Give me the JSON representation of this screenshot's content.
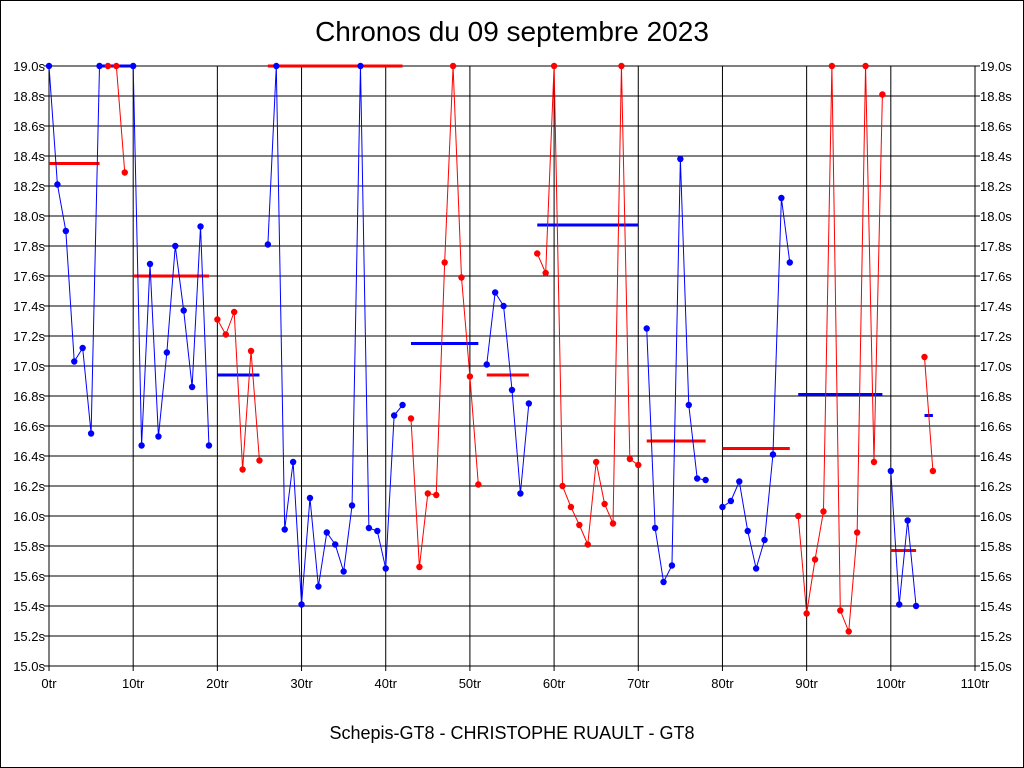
{
  "chart_data": {
    "type": "line",
    "title": "Chronos du 09 septembre 2023",
    "xlabel": "Schepis-GT8 - CHRISTOPHE RUAULT - GT8",
    "ylabel": "",
    "xlim": [
      0,
      110
    ],
    "ylim": [
      15.0,
      19.0
    ],
    "grid": true,
    "x_ticks": [
      "0tr",
      "10tr",
      "20tr",
      "30tr",
      "40tr",
      "50tr",
      "60tr",
      "70tr",
      "80tr",
      "90tr",
      "100tr",
      "110tr"
    ],
    "y_ticks": [
      "15.0s",
      "15.2s",
      "15.4s",
      "15.6s",
      "15.8s",
      "16.0s",
      "16.2s",
      "16.4s",
      "16.6s",
      "16.8s",
      "17.0s",
      "17.2s",
      "17.4s",
      "17.6s",
      "17.8s",
      "18.0s",
      "18.2s",
      "18.4s",
      "18.6s",
      "18.8s",
      "19.0s"
    ],
    "colors": {
      "blue": "#0000ff",
      "red": "#ff0000"
    },
    "series": [
      {
        "color": "blue",
        "points": [
          [
            0,
            19.0
          ],
          [
            1,
            18.21
          ],
          [
            2,
            17.9
          ],
          [
            3,
            17.03
          ],
          [
            4,
            17.12
          ],
          [
            5,
            16.55
          ],
          [
            6,
            19.0
          ]
        ]
      },
      {
        "color": "red",
        "points": [
          [
            7,
            19.0
          ],
          [
            8,
            19.0
          ],
          [
            9,
            18.29
          ]
        ]
      },
      {
        "color": "blue",
        "points": [
          [
            10,
            19.0
          ],
          [
            11,
            16.47
          ],
          [
            12,
            17.68
          ],
          [
            13,
            16.53
          ],
          [
            14,
            17.09
          ],
          [
            15,
            17.8
          ],
          [
            16,
            17.37
          ],
          [
            17,
            16.86
          ],
          [
            18,
            17.93
          ],
          [
            19,
            16.47
          ]
        ]
      },
      {
        "color": "red",
        "points": [
          [
            20,
            17.31
          ],
          [
            21,
            17.21
          ],
          [
            22,
            17.36
          ],
          [
            23,
            16.31
          ],
          [
            24,
            17.1
          ],
          [
            25,
            16.37
          ]
        ]
      },
      {
        "color": "blue",
        "points": [
          [
            26,
            17.81
          ],
          [
            27,
            19.0
          ],
          [
            28,
            15.91
          ],
          [
            29,
            16.36
          ],
          [
            30,
            15.41
          ],
          [
            31,
            16.12
          ],
          [
            32,
            15.53
          ],
          [
            33,
            15.89
          ],
          [
            34,
            15.81
          ],
          [
            35,
            15.63
          ],
          [
            36,
            16.07
          ],
          [
            37,
            19.0
          ],
          [
            38,
            15.92
          ],
          [
            39,
            15.9
          ],
          [
            40,
            15.65
          ],
          [
            41,
            16.67
          ],
          [
            42,
            16.74
          ]
        ]
      },
      {
        "color": "red",
        "points": [
          [
            43,
            16.65
          ],
          [
            44,
            15.66
          ],
          [
            45,
            16.15
          ],
          [
            46,
            16.14
          ],
          [
            47,
            17.69
          ],
          [
            48,
            19.0
          ],
          [
            49,
            17.59
          ],
          [
            50,
            16.93
          ],
          [
            51,
            16.21
          ]
        ]
      },
      {
        "color": "blue",
        "points": [
          [
            52,
            17.01
          ],
          [
            53,
            17.49
          ],
          [
            54,
            17.4
          ],
          [
            55,
            16.84
          ],
          [
            56,
            16.15
          ],
          [
            57,
            16.75
          ]
        ]
      },
      {
        "color": "red",
        "points": [
          [
            58,
            17.75
          ],
          [
            59,
            17.62
          ],
          [
            60,
            19.0
          ],
          [
            61,
            16.2
          ],
          [
            62,
            16.06
          ],
          [
            63,
            15.94
          ],
          [
            64,
            15.81
          ],
          [
            65,
            16.36
          ],
          [
            66,
            16.08
          ],
          [
            67,
            15.95
          ],
          [
            68,
            19.0
          ],
          [
            69,
            16.38
          ],
          [
            70,
            16.34
          ]
        ]
      },
      {
        "color": "blue",
        "points": [
          [
            71,
            17.25
          ],
          [
            72,
            15.92
          ],
          [
            73,
            15.56
          ],
          [
            74,
            15.67
          ],
          [
            75,
            18.38
          ],
          [
            76,
            16.74
          ],
          [
            77,
            16.25
          ],
          [
            78,
            16.24
          ]
        ]
      },
      {
        "color": "blue",
        "points": [
          [
            80,
            16.06
          ],
          [
            81,
            16.1
          ],
          [
            82,
            16.23
          ],
          [
            83,
            15.9
          ],
          [
            84,
            15.65
          ],
          [
            85,
            15.84
          ],
          [
            86,
            16.41
          ],
          [
            87,
            18.12
          ],
          [
            88,
            17.69
          ]
        ]
      },
      {
        "color": "red",
        "points": [
          [
            89,
            16.0
          ],
          [
            90,
            15.35
          ],
          [
            91,
            15.71
          ],
          [
            92,
            16.03
          ],
          [
            93,
            19.0
          ],
          [
            94,
            15.37
          ],
          [
            95,
            15.23
          ],
          [
            96,
            15.89
          ],
          [
            97,
            19.0
          ],
          [
            98,
            16.36
          ],
          [
            99,
            18.81
          ]
        ]
      },
      {
        "color": "blue",
        "points": [
          [
            100,
            16.3
          ],
          [
            101,
            15.41
          ],
          [
            102,
            15.97
          ],
          [
            103,
            15.4
          ]
        ]
      },
      {
        "color": "red",
        "points": [
          [
            104,
            17.06
          ],
          [
            105,
            16.3
          ]
        ]
      }
    ],
    "averages": [
      {
        "color": "red",
        "x": [
          0,
          6
        ],
        "y": 18.35
      },
      {
        "color": "blue",
        "x": [
          6,
          10
        ],
        "y": 19.0
      },
      {
        "color": "red",
        "x": [
          10,
          19
        ],
        "y": 17.6
      },
      {
        "color": "blue",
        "x": [
          20,
          25
        ],
        "y": 16.94
      },
      {
        "color": "red",
        "x": [
          26,
          42
        ],
        "y": 19.0
      },
      {
        "color": "blue",
        "x": [
          43,
          51
        ],
        "y": 17.15
      },
      {
        "color": "red",
        "x": [
          52,
          57
        ],
        "y": 16.94
      },
      {
        "color": "blue",
        "x": [
          58,
          70
        ],
        "y": 17.94
      },
      {
        "color": "red",
        "x": [
          71,
          78
        ],
        "y": 16.5
      },
      {
        "color": "red",
        "x": [
          80,
          88
        ],
        "y": 16.45
      },
      {
        "color": "blue",
        "x": [
          89,
          99
        ],
        "y": 16.81
      },
      {
        "color": "red",
        "x": [
          100,
          103
        ],
        "y": 15.77
      },
      {
        "color": "blue",
        "x": [
          104,
          105
        ],
        "y": 16.67
      }
    ]
  }
}
